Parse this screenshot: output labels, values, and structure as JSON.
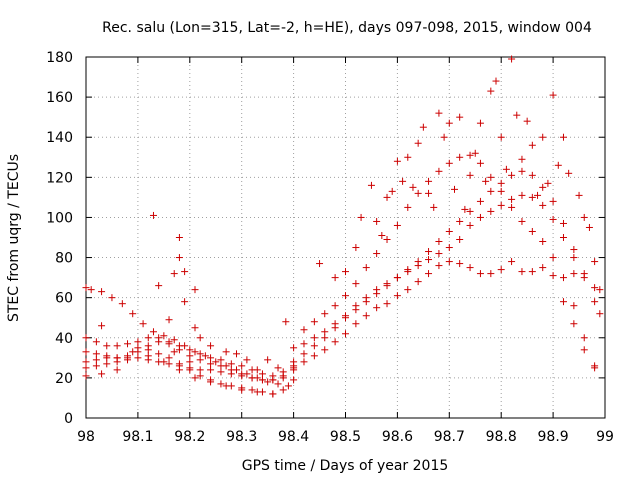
{
  "chart_data": {
    "type": "scatter",
    "title": "Rec. salu (Lon=315, Lat=-2, h=HE), days 097-098, 2015, window 004",
    "xlabel": "GPS time / Days of year 2015",
    "ylabel": "STEC from uqrg / TECUs",
    "xlim": [
      98,
      99
    ],
    "ylim": [
      0,
      180
    ],
    "xticks": [
      "98",
      "98.1",
      "98.2",
      "98.3",
      "98.4",
      "98.5",
      "98.6",
      "98.7",
      "98.8",
      "98.9",
      "99"
    ],
    "yticks": [
      "0",
      "20",
      "40",
      "60",
      "80",
      "100",
      "120",
      "140",
      "160",
      "180"
    ],
    "grid": true,
    "marker": "+",
    "color": "#cc0000",
    "series": [
      {
        "values": [
          [
            98.0,
            65
          ],
          [
            98.01,
            64
          ],
          [
            98.03,
            63
          ],
          [
            98.05,
            60
          ],
          [
            98.07,
            57
          ],
          [
            98.09,
            52
          ],
          [
            98.11,
            47
          ],
          [
            98.13,
            43
          ],
          [
            98.15,
            41
          ],
          [
            98.17,
            39
          ],
          [
            98.19,
            36
          ],
          [
            98.21,
            33
          ],
          [
            98.23,
            31
          ],
          [
            98.25,
            28
          ],
          [
            98.27,
            26
          ],
          [
            98.29,
            24
          ],
          [
            98.31,
            22
          ],
          [
            98.33,
            20
          ],
          [
            98.35,
            18
          ],
          [
            98.37,
            17
          ],
          [
            98.385,
            48
          ],
          [
            98.0,
            40
          ],
          [
            98.02,
            38
          ],
          [
            98.04,
            36
          ],
          [
            98.06,
            36
          ],
          [
            98.08,
            37
          ],
          [
            98.1,
            38
          ],
          [
            98.12,
            40
          ],
          [
            98.14,
            40
          ],
          [
            98.16,
            38
          ],
          [
            98.18,
            36
          ],
          [
            98.2,
            34
          ],
          [
            98.22,
            32
          ],
          [
            98.24,
            30
          ],
          [
            98.26,
            29
          ],
          [
            98.28,
            27
          ],
          [
            98.3,
            26
          ],
          [
            98.32,
            24
          ],
          [
            98.34,
            22
          ],
          [
            98.36,
            21
          ],
          [
            98.38,
            23
          ],
          [
            98.4,
            26
          ],
          [
            98.0,
            33
          ],
          [
            98.02,
            32
          ],
          [
            98.04,
            31
          ],
          [
            98.06,
            30
          ],
          [
            98.08,
            31
          ],
          [
            98.1,
            33
          ],
          [
            98.12,
            36
          ],
          [
            98.14,
            38
          ],
          [
            98.16,
            37
          ],
          [
            98.18,
            34
          ],
          [
            98.2,
            31
          ],
          [
            98.22,
            29
          ],
          [
            98.24,
            27
          ],
          [
            98.26,
            26
          ],
          [
            98.28,
            24
          ],
          [
            98.3,
            22
          ],
          [
            98.32,
            20
          ],
          [
            98.34,
            19
          ],
          [
            98.36,
            19
          ],
          [
            98.38,
            21
          ],
          [
            98.4,
            24
          ],
          [
            98.0,
            28
          ],
          [
            98.02,
            29
          ],
          [
            98.04,
            30
          ],
          [
            98.06,
            30
          ],
          [
            98.08,
            30
          ],
          [
            98.1,
            30
          ],
          [
            98.12,
            29
          ],
          [
            98.14,
            28
          ],
          [
            98.16,
            27
          ],
          [
            98.18,
            26
          ],
          [
            98.2,
            25
          ],
          [
            98.22,
            24
          ],
          [
            98.24,
            24
          ],
          [
            98.26,
            23
          ],
          [
            98.28,
            22
          ],
          [
            98.3,
            21
          ],
          [
            98.32,
            20
          ],
          [
            98.34,
            19
          ],
          [
            98.36,
            19
          ],
          [
            98.38,
            20
          ],
          [
            98.0,
            25
          ],
          [
            98.02,
            26
          ],
          [
            98.04,
            27
          ],
          [
            98.06,
            28
          ],
          [
            98.08,
            29
          ],
          [
            98.1,
            35
          ],
          [
            98.12,
            34
          ],
          [
            98.14,
            32
          ],
          [
            98.16,
            30
          ],
          [
            98.18,
            27
          ],
          [
            98.2,
            24
          ],
          [
            98.22,
            21
          ],
          [
            98.24,
            19
          ],
          [
            98.26,
            17
          ],
          [
            98.28,
            16
          ],
          [
            98.3,
            15
          ],
          [
            98.32,
            14
          ],
          [
            98.34,
            13
          ],
          [
            98.36,
            12
          ],
          [
            98.38,
            14
          ],
          [
            98.4,
            19
          ],
          [
            98.0,
            21
          ],
          [
            98.03,
            22
          ],
          [
            98.06,
            24
          ],
          [
            98.09,
            33
          ],
          [
            98.12,
            31
          ],
          [
            98.15,
            28
          ],
          [
            98.18,
            24
          ],
          [
            98.21,
            20
          ],
          [
            98.24,
            18
          ],
          [
            98.27,
            16
          ],
          [
            98.3,
            14
          ],
          [
            98.33,
            13
          ],
          [
            98.36,
            12
          ],
          [
            98.39,
            16
          ],
          [
            98.03,
            46
          ],
          [
            98.13,
            101
          ],
          [
            98.14,
            66
          ],
          [
            98.16,
            49
          ],
          [
            98.17,
            72
          ],
          [
            98.18,
            90
          ],
          [
            98.18,
            80
          ],
          [
            98.19,
            73
          ],
          [
            98.19,
            58
          ],
          [
            98.21,
            64
          ],
          [
            98.21,
            45
          ],
          [
            98.17,
            33
          ],
          [
            98.2,
            28
          ],
          [
            98.22,
            40
          ],
          [
            98.24,
            36
          ],
          [
            98.27,
            33
          ],
          [
            98.29,
            32
          ],
          [
            98.31,
            29
          ],
          [
            98.33,
            24
          ],
          [
            98.35,
            29
          ],
          [
            98.37,
            25
          ],
          [
            98.4,
            35
          ],
          [
            98.42,
            37
          ],
          [
            98.44,
            40
          ],
          [
            98.46,
            43
          ],
          [
            98.48,
            47
          ],
          [
            98.5,
            51
          ],
          [
            98.52,
            56
          ],
          [
            98.54,
            60
          ],
          [
            98.56,
            64
          ],
          [
            98.58,
            67
          ],
          [
            98.6,
            70
          ],
          [
            98.62,
            73
          ],
          [
            98.64,
            76
          ],
          [
            98.66,
            79
          ],
          [
            98.68,
            82
          ],
          [
            98.7,
            85
          ],
          [
            98.72,
            89
          ],
          [
            98.74,
            96
          ],
          [
            98.76,
            100
          ],
          [
            98.78,
            103
          ],
          [
            98.8,
            106
          ],
          [
            98.82,
            109
          ],
          [
            98.84,
            111
          ],
          [
            98.86,
            110
          ],
          [
            98.88,
            106
          ],
          [
            98.9,
            99
          ],
          [
            98.92,
            90
          ],
          [
            98.94,
            80
          ],
          [
            98.96,
            72
          ],
          [
            98.98,
            65
          ],
          [
            98.4,
            28
          ],
          [
            98.42,
            32
          ],
          [
            98.44,
            36
          ],
          [
            98.46,
            40
          ],
          [
            98.48,
            45
          ],
          [
            98.5,
            50
          ],
          [
            98.52,
            54
          ],
          [
            98.54,
            58
          ],
          [
            98.56,
            62
          ],
          [
            98.58,
            66
          ],
          [
            98.6,
            70
          ],
          [
            98.62,
            74
          ],
          [
            98.64,
            78
          ],
          [
            98.66,
            83
          ],
          [
            98.68,
            88
          ],
          [
            98.7,
            93
          ],
          [
            98.72,
            98
          ],
          [
            98.74,
            103
          ],
          [
            98.76,
            108
          ],
          [
            98.78,
            113
          ],
          [
            98.8,
            117
          ],
          [
            98.82,
            121
          ],
          [
            98.84,
            123
          ],
          [
            98.86,
            121
          ],
          [
            98.88,
            115
          ],
          [
            98.9,
            108
          ],
          [
            98.92,
            97
          ],
          [
            98.94,
            84
          ],
          [
            98.96,
            70
          ],
          [
            98.98,
            58
          ],
          [
            98.4,
            25
          ],
          [
            98.42,
            28
          ],
          [
            98.44,
            31
          ],
          [
            98.46,
            34
          ],
          [
            98.48,
            38
          ],
          [
            98.5,
            42
          ],
          [
            98.52,
            47
          ],
          [
            98.54,
            51
          ],
          [
            98.56,
            55
          ],
          [
            98.58,
            57
          ],
          [
            98.6,
            61
          ],
          [
            98.62,
            64
          ],
          [
            98.64,
            68
          ],
          [
            98.66,
            72
          ],
          [
            98.68,
            76
          ],
          [
            98.7,
            78
          ],
          [
            98.72,
            77
          ],
          [
            98.74,
            75
          ],
          [
            98.76,
            72
          ],
          [
            98.78,
            72
          ],
          [
            98.8,
            74
          ],
          [
            98.82,
            78
          ],
          [
            98.84,
            73
          ],
          [
            98.86,
            73
          ],
          [
            98.88,
            75
          ],
          [
            98.9,
            71
          ],
          [
            98.92,
            58
          ],
          [
            98.94,
            47
          ],
          [
            98.96,
            34
          ],
          [
            98.98,
            26
          ],
          [
            98.42,
            44
          ],
          [
            98.44,
            48
          ],
          [
            98.46,
            52
          ],
          [
            98.48,
            56
          ],
          [
            98.5,
            61
          ],
          [
            98.52,
            67
          ],
          [
            98.54,
            75
          ],
          [
            98.56,
            82
          ],
          [
            98.58,
            89
          ],
          [
            98.6,
            96
          ],
          [
            98.62,
            105
          ],
          [
            98.64,
            112
          ],
          [
            98.66,
            118
          ],
          [
            98.68,
            123
          ],
          [
            98.7,
            127
          ],
          [
            98.72,
            130
          ],
          [
            98.74,
            131
          ],
          [
            98.76,
            127
          ],
          [
            98.78,
            120
          ],
          [
            98.8,
            113
          ],
          [
            98.82,
            105
          ],
          [
            98.84,
            98
          ],
          [
            98.86,
            93
          ],
          [
            98.88,
            88
          ],
          [
            98.9,
            80
          ],
          [
            98.92,
            70
          ],
          [
            98.94,
            56
          ],
          [
            98.96,
            40
          ],
          [
            98.98,
            25
          ],
          [
            98.45,
            77
          ],
          [
            98.48,
            70
          ],
          [
            98.5,
            73
          ],
          [
            98.52,
            85
          ],
          [
            98.53,
            100
          ],
          [
            98.55,
            116
          ],
          [
            98.56,
            98
          ],
          [
            98.57,
            91
          ],
          [
            98.58,
            110
          ],
          [
            98.59,
            113
          ],
          [
            98.6,
            128
          ],
          [
            98.61,
            118
          ],
          [
            98.62,
            130
          ],
          [
            98.63,
            115
          ],
          [
            98.64,
            137
          ],
          [
            98.65,
            145
          ],
          [
            98.66,
            112
          ],
          [
            98.67,
            105
          ],
          [
            98.68,
            152
          ],
          [
            98.69,
            140
          ],
          [
            98.7,
            147
          ],
          [
            98.71,
            114
          ],
          [
            98.72,
            150
          ],
          [
            98.73,
            104
          ],
          [
            98.74,
            121
          ],
          [
            98.75,
            132
          ],
          [
            98.76,
            147
          ],
          [
            98.77,
            118
          ],
          [
            98.78,
            163
          ],
          [
            98.79,
            168
          ],
          [
            98.8,
            140
          ],
          [
            98.81,
            124
          ],
          [
            98.82,
            179
          ],
          [
            98.83,
            151
          ],
          [
            98.84,
            129
          ],
          [
            98.85,
            148
          ],
          [
            98.86,
            136
          ],
          [
            98.87,
            111
          ],
          [
            98.88,
            140
          ],
          [
            98.89,
            117
          ],
          [
            98.9,
            161
          ],
          [
            98.91,
            126
          ],
          [
            98.92,
            140
          ],
          [
            98.93,
            122
          ],
          [
            98.94,
            72
          ],
          [
            98.95,
            111
          ],
          [
            98.96,
            100
          ],
          [
            98.97,
            95
          ],
          [
            98.98,
            78
          ],
          [
            98.99,
            64
          ],
          [
            98.99,
            52
          ]
        ]
      }
    ]
  }
}
